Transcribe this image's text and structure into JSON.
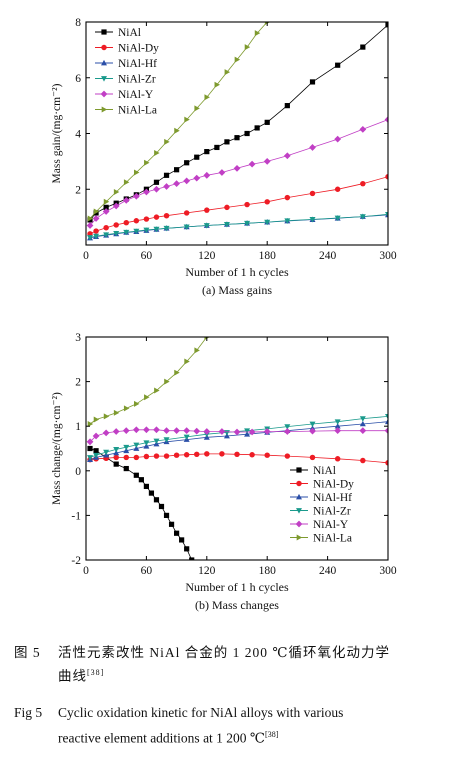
{
  "chart_data": [
    {
      "type": "line",
      "caption": "(a) Mass gains",
      "xlabel": "Number of 1 h cycles",
      "ylabel": "Mass gain/(mg·cm⁻²)",
      "xlim": [
        0,
        300
      ],
      "ylim": [
        0,
        8
      ],
      "xticks": [
        0,
        60,
        120,
        180,
        240,
        300
      ],
      "yticks": [
        2,
        4,
        6,
        8
      ],
      "legend_position": "top-left",
      "series": [
        {
          "name": "NiAl",
          "color": "#000000",
          "marker": "square",
          "x": [
            4,
            10,
            20,
            30,
            40,
            50,
            60,
            70,
            80,
            90,
            100,
            110,
            120,
            130,
            140,
            150,
            160,
            170,
            180,
            200,
            225,
            250,
            275,
            300
          ],
          "y": [
            0.9,
            1.15,
            1.35,
            1.5,
            1.65,
            1.8,
            2.0,
            2.25,
            2.5,
            2.7,
            2.95,
            3.15,
            3.35,
            3.5,
            3.7,
            3.85,
            4.0,
            4.2,
            4.4,
            5.0,
            5.85,
            6.45,
            7.1,
            7.9
          ]
        },
        {
          "name": "NiAl-Dy",
          "color": "#ee1c25",
          "marker": "circle",
          "x": [
            4,
            10,
            20,
            30,
            40,
            50,
            60,
            70,
            80,
            100,
            120,
            140,
            160,
            180,
            200,
            225,
            250,
            275,
            300
          ],
          "y": [
            0.4,
            0.5,
            0.62,
            0.72,
            0.8,
            0.87,
            0.93,
            1.0,
            1.05,
            1.15,
            1.25,
            1.35,
            1.45,
            1.55,
            1.7,
            1.85,
            2.0,
            2.2,
            2.45
          ]
        },
        {
          "name": "NiAl-Hf",
          "color": "#2b4fa8",
          "marker": "triangle-up",
          "x": [
            4,
            10,
            20,
            30,
            40,
            50,
            60,
            70,
            80,
            100,
            120,
            140,
            160,
            180,
            200,
            225,
            250,
            275,
            300
          ],
          "y": [
            0.25,
            0.3,
            0.35,
            0.4,
            0.45,
            0.48,
            0.52,
            0.56,
            0.6,
            0.65,
            0.7,
            0.74,
            0.78,
            0.82,
            0.86,
            0.91,
            0.96,
            1.02,
            1.08
          ]
        },
        {
          "name": "NiAl-Zr",
          "color": "#1a9a8c",
          "marker": "triangle-down",
          "x": [
            4,
            10,
            20,
            30,
            40,
            50,
            60,
            70,
            80,
            100,
            120,
            140,
            160,
            180,
            200,
            225,
            250,
            275,
            300
          ],
          "y": [
            0.27,
            0.32,
            0.37,
            0.42,
            0.46,
            0.5,
            0.54,
            0.57,
            0.6,
            0.65,
            0.7,
            0.74,
            0.78,
            0.82,
            0.87,
            0.92,
            0.97,
            1.02,
            1.1
          ]
        },
        {
          "name": "NiAl-Y",
          "color": "#c13fc5",
          "marker": "diamond",
          "x": [
            4,
            10,
            20,
            30,
            40,
            50,
            60,
            70,
            80,
            90,
            100,
            110,
            120,
            135,
            150,
            165,
            180,
            200,
            225,
            250,
            275,
            300
          ],
          "y": [
            0.7,
            0.95,
            1.2,
            1.4,
            1.6,
            1.75,
            1.9,
            2.0,
            2.1,
            2.2,
            2.3,
            2.4,
            2.5,
            2.6,
            2.75,
            2.9,
            3.0,
            3.2,
            3.5,
            3.8,
            4.15,
            4.5
          ]
        },
        {
          "name": "NiAl-La",
          "color": "#7e9a2e",
          "marker": "triangle-right",
          "x": [
            4,
            10,
            20,
            30,
            40,
            50,
            60,
            70,
            80,
            90,
            100,
            110,
            120,
            130,
            140,
            150,
            160,
            170,
            180
          ],
          "y": [
            0.95,
            1.2,
            1.55,
            1.9,
            2.25,
            2.6,
            2.95,
            3.3,
            3.7,
            4.1,
            4.5,
            4.9,
            5.3,
            5.75,
            6.2,
            6.65,
            7.1,
            7.6,
            8.0
          ]
        }
      ]
    },
    {
      "type": "line",
      "caption": "(b) Mass changes",
      "xlabel": "Number of 1 h cycles",
      "ylabel": "Mass change/(mg·cm⁻²)",
      "xlim": [
        0,
        300
      ],
      "ylim": [
        -2,
        3
      ],
      "xticks": [
        0,
        60,
        120,
        180,
        240,
        300
      ],
      "yticks": [
        -2,
        -1,
        0,
        1,
        2,
        3
      ],
      "legend_position": "bottom-right",
      "series": [
        {
          "name": "NiAl",
          "color": "#000000",
          "marker": "square",
          "x": [
            4,
            10,
            20,
            30,
            40,
            50,
            55,
            60,
            65,
            70,
            75,
            80,
            85,
            90,
            95,
            100,
            105
          ],
          "y": [
            0.5,
            0.45,
            0.3,
            0.15,
            0.05,
            -0.1,
            -0.2,
            -0.35,
            -0.5,
            -0.65,
            -0.8,
            -1.0,
            -1.2,
            -1.4,
            -1.55,
            -1.75,
            -2.0
          ]
        },
        {
          "name": "NiAl-Dy",
          "color": "#ee1c25",
          "marker": "circle",
          "x": [
            4,
            10,
            20,
            30,
            40,
            50,
            60,
            70,
            80,
            90,
            100,
            110,
            120,
            135,
            150,
            165,
            180,
            200,
            225,
            250,
            275,
            300
          ],
          "y": [
            0.25,
            0.27,
            0.28,
            0.3,
            0.3,
            0.3,
            0.32,
            0.33,
            0.33,
            0.35,
            0.36,
            0.37,
            0.38,
            0.38,
            0.37,
            0.36,
            0.35,
            0.33,
            0.3,
            0.27,
            0.23,
            0.18
          ]
        },
        {
          "name": "NiAl-Hf",
          "color": "#2b4fa8",
          "marker": "triangle-up",
          "x": [
            4,
            10,
            20,
            30,
            40,
            50,
            60,
            70,
            80,
            100,
            120,
            140,
            160,
            180,
            200,
            225,
            250,
            275,
            300
          ],
          "y": [
            0.25,
            0.3,
            0.35,
            0.4,
            0.45,
            0.5,
            0.55,
            0.6,
            0.65,
            0.7,
            0.75,
            0.78,
            0.82,
            0.86,
            0.9,
            0.95,
            1.0,
            1.05,
            1.1
          ]
        },
        {
          "name": "NiAl-Zr",
          "color": "#1a9a8c",
          "marker": "triangle-down",
          "x": [
            4,
            10,
            20,
            30,
            40,
            50,
            60,
            70,
            80,
            100,
            120,
            140,
            160,
            180,
            200,
            225,
            250,
            275,
            300
          ],
          "y": [
            0.3,
            0.35,
            0.42,
            0.48,
            0.53,
            0.58,
            0.63,
            0.67,
            0.7,
            0.76,
            0.82,
            0.86,
            0.9,
            0.94,
            0.99,
            1.05,
            1.1,
            1.17,
            1.22
          ]
        },
        {
          "name": "NiAl-Y",
          "color": "#c13fc5",
          "marker": "diamond",
          "x": [
            4,
            10,
            20,
            30,
            40,
            50,
            60,
            70,
            80,
            90,
            100,
            110,
            120,
            135,
            150,
            165,
            180,
            200,
            225,
            250,
            275,
            300
          ],
          "y": [
            0.65,
            0.78,
            0.85,
            0.88,
            0.9,
            0.92,
            0.92,
            0.92,
            0.9,
            0.9,
            0.9,
            0.89,
            0.88,
            0.88,
            0.87,
            0.87,
            0.88,
            0.88,
            0.89,
            0.9,
            0.9,
            0.9
          ]
        },
        {
          "name": "NiAl-La",
          "color": "#7e9a2e",
          "marker": "triangle-right",
          "x": [
            4,
            10,
            20,
            30,
            40,
            50,
            60,
            70,
            80,
            90,
            100,
            110,
            120
          ],
          "y": [
            1.05,
            1.15,
            1.22,
            1.3,
            1.4,
            1.5,
            1.65,
            1.8,
            2.0,
            2.2,
            2.45,
            2.7,
            3.0
          ]
        }
      ]
    }
  ],
  "caption": {
    "cn_label": "图 5",
    "cn_line1": "活性元素改性 NiAl 合金的 1 200 ℃循环氧化动力学",
    "cn_line2": "曲线",
    "cn_ref": "[38]",
    "en_label": "Fig 5",
    "en_line1": "Cyclic oxidation kinetic for NiAl alloys with various",
    "en_line2": "reactive element additions at 1 200 ℃",
    "en_ref": "[38]"
  }
}
